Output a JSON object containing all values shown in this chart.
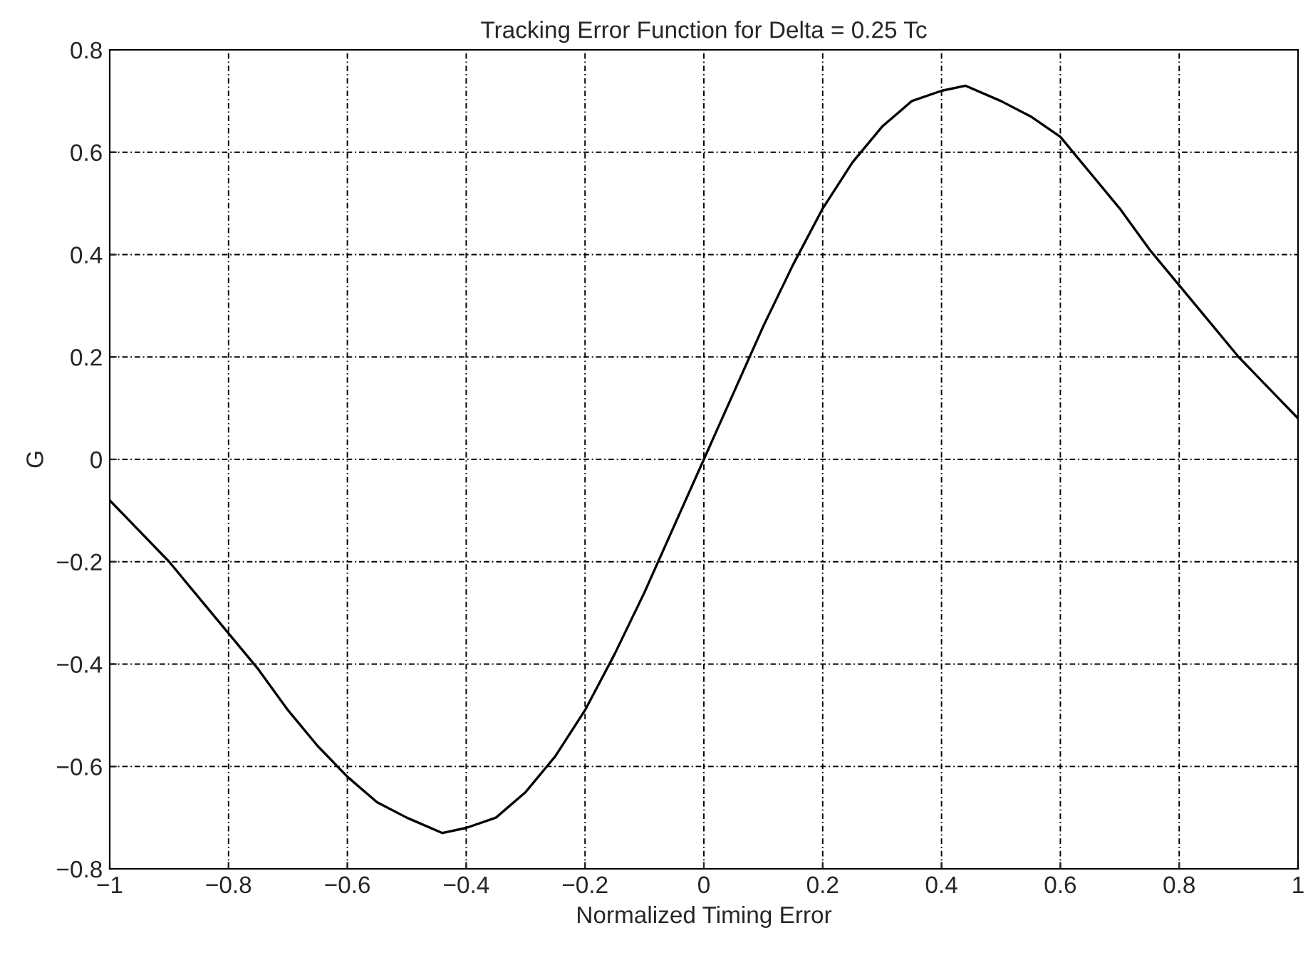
{
  "chart_data": {
    "type": "line",
    "title": "Tracking Error Function for Delta = 0.25 Tc",
    "xlabel": "Normalized Timing Error",
    "ylabel": "G",
    "x": [
      -1,
      -0.95,
      -0.9,
      -0.85,
      -0.8,
      -0.75,
      -0.7,
      -0.65,
      -0.6,
      -0.55,
      -0.5,
      -0.44,
      -0.4,
      -0.35,
      -0.3,
      -0.25,
      -0.2,
      -0.15,
      -0.1,
      -0.05,
      0,
      0.05,
      0.1,
      0.15,
      0.2,
      0.25,
      0.3,
      0.35,
      0.4,
      0.44,
      0.5,
      0.55,
      0.6,
      0.65,
      0.7,
      0.75,
      0.8,
      0.85,
      0.9,
      0.95,
      1
    ],
    "series": [
      {
        "color": "#000000",
        "values": [
          -0.08,
          -0.14,
          -0.2,
          -0.27,
          -0.34,
          -0.41,
          -0.49,
          -0.56,
          -0.62,
          -0.67,
          -0.7,
          -0.73,
          -0.72,
          -0.7,
          -0.65,
          -0.58,
          -0.49,
          -0.38,
          -0.26,
          -0.13,
          0,
          0.13,
          0.26,
          0.38,
          0.49,
          0.58,
          0.65,
          0.7,
          0.72,
          0.73,
          0.7,
          0.67,
          0.63,
          0.56,
          0.49,
          0.41,
          0.34,
          0.27,
          0.2,
          0.14,
          0.08
        ]
      }
    ],
    "xlim": [
      -1,
      1
    ],
    "ylim": [
      -0.8,
      0.8
    ],
    "xticks": [
      -1,
      -0.8,
      -0.6,
      -0.4,
      -0.2,
      0,
      0.2,
      0.4,
      0.6,
      0.8,
      1
    ],
    "yticks": [
      -0.8,
      -0.6,
      -0.4,
      -0.2,
      0,
      0.2,
      0.4,
      0.6,
      0.8
    ],
    "grid": true,
    "marker": "none",
    "line_style": "solid"
  }
}
